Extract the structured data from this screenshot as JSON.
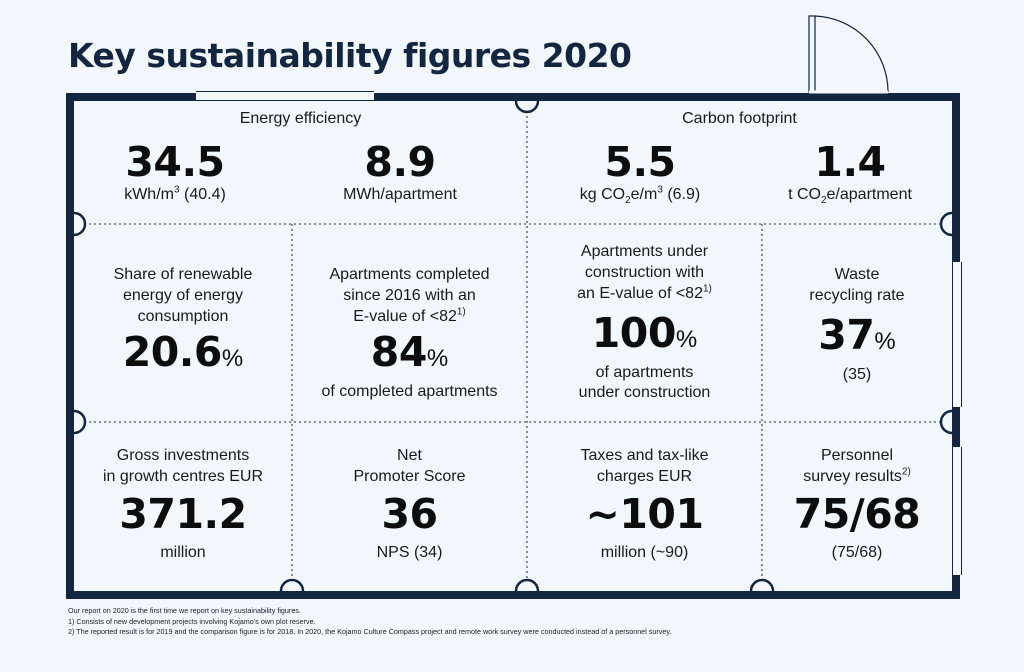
{
  "title": "Key sustainability figures 2020",
  "colors": {
    "frame": "#14263f",
    "background": "#f1f7fb",
    "text": "#111111"
  },
  "energy": {
    "heading": "Energy efficiency",
    "a_value": "34.5",
    "a_unit": "kWh/m",
    "a_unit_sup": "3",
    "a_unit_tail": " (40.4)",
    "b_value": "8.9",
    "b_unit": "MWh/apartment"
  },
  "carbon": {
    "heading": "Carbon footprint",
    "a_value": "5.5",
    "a_unit_pre": "kg CO",
    "a_unit_sub": "2",
    "a_unit_mid": "e/m",
    "a_unit_sup": "3",
    "a_unit_tail": " (6.9)",
    "b_value": "1.4",
    "b_unit_pre": "t CO",
    "b_unit_sub": "2",
    "b_unit_tail": "e/apartment"
  },
  "renewable": {
    "line1": "Share of renewable",
    "line2": "energy of energy",
    "line3": "consumption",
    "value": "20.6",
    "pct": "%"
  },
  "completed": {
    "line1": "Apartments completed",
    "line2": "since 2016 with an",
    "line3": "E-value of <82",
    "sup": "1)",
    "value": "84",
    "pct": "%",
    "unit": "of completed apartments"
  },
  "construction": {
    "line1": "Apartments under",
    "line2": "construction with",
    "line3": "an E-value of <82",
    "sup": "1)",
    "value": "100",
    "pct": "%",
    "unit1": "of apartments",
    "unit2": "under construction"
  },
  "waste": {
    "line1": "Waste",
    "line2": "recycling rate",
    "value": "37",
    "pct": "%",
    "unit": "(35)"
  },
  "investments": {
    "line1": "Gross investments",
    "line2": "in growth centres EUR",
    "value": "371.2",
    "unit": "million"
  },
  "nps": {
    "line1": "Net",
    "line2": "Promoter Score",
    "value": "36",
    "unit": "NPS (34)"
  },
  "taxes": {
    "line1": "Taxes and tax-like",
    "line2": "charges EUR",
    "value": "~101",
    "unit": "million (~90)"
  },
  "personnel": {
    "line1": "Personnel",
    "line2": "survey results",
    "sup": "2)",
    "value": "75/68",
    "unit": "(75/68)"
  },
  "footer": {
    "note0": "Our report on 2020 is the first time we report on key sustainability figures.",
    "note1": "1) Consists of new development projects involving Kojamo’s own plot reserve.",
    "note2": "2) The reported result is for 2019 and the comparison figure is for 2018. In 2020, the Kojamo Culture Compass project and remote work survey were conducted instead of a personnel survey."
  }
}
